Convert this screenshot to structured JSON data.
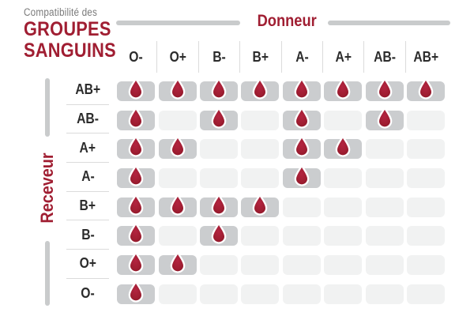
{
  "title": {
    "eyebrow": "Compatibilité des",
    "line1": "GROUPES",
    "line2": "SANGUINS"
  },
  "axes": {
    "donor_label": "Donneur",
    "receiver_label": "Receveur"
  },
  "chart_data": {
    "type": "heatmap",
    "title": "Compatibilité des groupes sanguins",
    "x_axis_label": "Donneur",
    "y_axis_label": "Receveur",
    "columns": [
      "O-",
      "O+",
      "B-",
      "B+",
      "A-",
      "A+",
      "AB-",
      "AB+"
    ],
    "rows": [
      "AB+",
      "AB-",
      "A+",
      "A-",
      "B+",
      "B-",
      "O+",
      "O-"
    ],
    "cell_marker": "blood-drop-icon",
    "matrix": [
      [
        1,
        1,
        1,
        1,
        1,
        1,
        1,
        1
      ],
      [
        1,
        0,
        1,
        0,
        1,
        0,
        1,
        0
      ],
      [
        1,
        1,
        0,
        0,
        1,
        1,
        0,
        0
      ],
      [
        1,
        0,
        0,
        0,
        1,
        0,
        0,
        0
      ],
      [
        1,
        1,
        1,
        1,
        0,
        0,
        0,
        0
      ],
      [
        1,
        0,
        1,
        0,
        0,
        0,
        0,
        0
      ],
      [
        1,
        1,
        0,
        0,
        0,
        0,
        0,
        0
      ],
      [
        1,
        0,
        0,
        0,
        0,
        0,
        0,
        0
      ]
    ],
    "legend_position": "none",
    "grid": "off"
  },
  "colors": {
    "crimson": "#A01E32",
    "drop_light": "#B32440",
    "drop_dark": "#8C1527",
    "drop_cell_bg": "#CBCDCF",
    "empty_cell_bg": "#F1F2F2",
    "bar_gray": "#C9CBCC",
    "separator_gray": "#DBDBDB",
    "header_text": "#2B2B2B",
    "eyebrow_gray": "#7A7A7A"
  }
}
